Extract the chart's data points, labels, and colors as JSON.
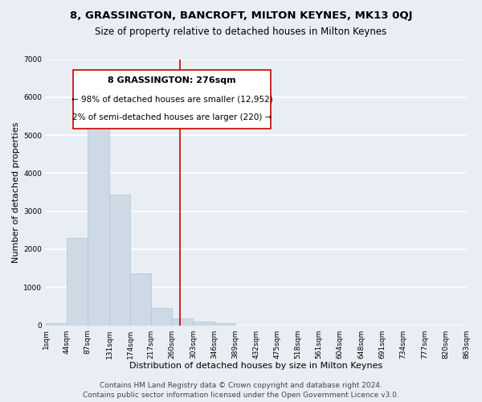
{
  "title": "8, GRASSINGTON, BANCROFT, MILTON KEYNES, MK13 0QJ",
  "subtitle": "Size of property relative to detached houses in Milton Keynes",
  "xlabel": "Distribution of detached houses by size in Milton Keynes",
  "ylabel": "Number of detached properties",
  "bar_color": "#cdd9e5",
  "bar_edge_color": "#b0c4d4",
  "bins": [
    1,
    44,
    87,
    131,
    174,
    217,
    260,
    303,
    346,
    389,
    432,
    475,
    518,
    561,
    604,
    648,
    691,
    734,
    777,
    820,
    863
  ],
  "values": [
    55,
    2300,
    5450,
    3440,
    1360,
    450,
    175,
    100,
    55,
    0,
    0,
    0,
    0,
    0,
    0,
    0,
    0,
    0,
    0,
    0
  ],
  "tick_labels": [
    "1sqm",
    "44sqm",
    "87sqm",
    "131sqm",
    "174sqm",
    "217sqm",
    "260sqm",
    "303sqm",
    "346sqm",
    "389sqm",
    "432sqm",
    "475sqm",
    "518sqm",
    "561sqm",
    "604sqm",
    "648sqm",
    "691sqm",
    "734sqm",
    "777sqm",
    "820sqm",
    "863sqm"
  ],
  "vline_x": 276,
  "vline_color": "#cc0000",
  "ylim": [
    0,
    7000
  ],
  "yticks": [
    0,
    1000,
    2000,
    3000,
    4000,
    5000,
    6000,
    7000
  ],
  "annotation_title": "8 GRASSINGTON: 276sqm",
  "annotation_line1": "← 98% of detached houses are smaller (12,952)",
  "annotation_line2": "2% of semi-detached houses are larger (220) →",
  "footer1": "Contains HM Land Registry data © Crown copyright and database right 2024.",
  "footer2": "Contains public sector information licensed under the Open Government Licence v3.0.",
  "background_color": "#e8eef4",
  "grid_color": "#ffffff",
  "title_fontsize": 9.5,
  "subtitle_fontsize": 8.5,
  "axis_label_fontsize": 8,
  "tick_fontsize": 6.5,
  "footer_fontsize": 6.5
}
